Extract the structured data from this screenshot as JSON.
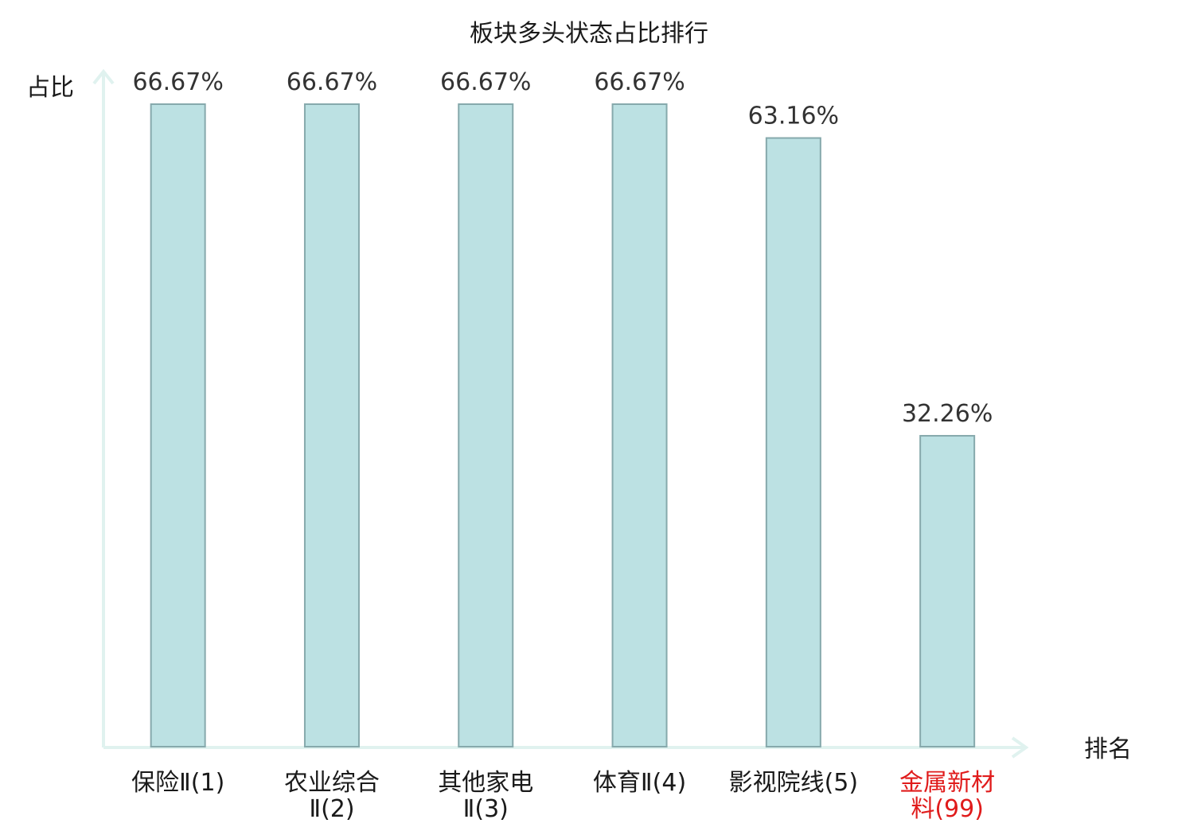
{
  "chart_data": {
    "type": "bar",
    "title": "板块多头状态占比排行",
    "ylabel": "占比",
    "xlabel": "排名",
    "categories": [
      {
        "lines": [
          "保险Ⅱ(1)"
        ],
        "highlight": false
      },
      {
        "lines": [
          "农业综合",
          "Ⅱ(2)"
        ],
        "highlight": false
      },
      {
        "lines": [
          "其他家电",
          "Ⅱ(3)"
        ],
        "highlight": false
      },
      {
        "lines": [
          "体育Ⅱ(4)"
        ],
        "highlight": false
      },
      {
        "lines": [
          "影视院线(5)"
        ],
        "highlight": false
      },
      {
        "lines": [
          "金属新材",
          "料(99)"
        ],
        "highlight": true
      }
    ],
    "values": [
      66.67,
      66.67,
      66.67,
      66.67,
      63.16,
      32.26
    ],
    "value_labels": [
      "66.67%",
      "66.67%",
      "66.67%",
      "66.67%",
      "63.16%",
      "32.26%"
    ],
    "ylim": [
      0,
      66.67
    ],
    "grid": false,
    "colors": {
      "bar_fill": "#bce1e3",
      "bar_stroke": "#86a9ac",
      "axis": "#e0f2ef",
      "highlight_text": "#e01b1b"
    }
  }
}
